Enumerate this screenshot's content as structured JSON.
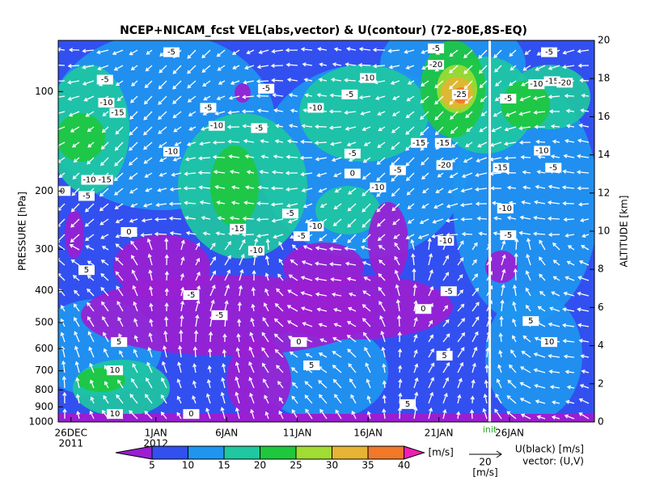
{
  "chart_data": {
    "type": "contour",
    "title": "NCEP+NICAM_fcst VEL(abs,vector) & U(contour)   (72-80E,8S-EQ)",
    "y_label": "PRESSURE [hPa]",
    "y2_label": "ALTITUDE [km]",
    "log_scale": true,
    "xlim": [
      -0.9,
      37
    ],
    "xticks": [
      {
        "value": 0,
        "label": "26DEC"
      },
      {
        "value": 6,
        "label": "1JAN"
      },
      {
        "value": 11,
        "label": "6JAN"
      },
      {
        "value": 16,
        "label": "11JAN"
      },
      {
        "value": 21,
        "label": "16JAN"
      },
      {
        "value": 26,
        "label": "21JAN"
      },
      {
        "value": 31,
        "label": "26JAN"
      }
    ],
    "xtick_years": [
      {
        "value": 0,
        "label": "2011"
      },
      {
        "value": 6,
        "label": "2012"
      }
    ],
    "ylim": [
      1000,
      70
    ],
    "yticks": [
      100,
      200,
      300,
      400,
      500,
      600,
      700,
      800,
      900,
      1000
    ],
    "y2lim": [
      0,
      20
    ],
    "y2ticks": [
      0,
      2,
      4,
      6,
      8,
      10,
      12,
      14,
      16,
      18,
      20
    ],
    "init": {
      "value": 29.6,
      "label": "init"
    },
    "contour_labels": [
      {
        "x": 7.1,
        "y": 76,
        "value": -5
      },
      {
        "x": 2.4,
        "y": 92,
        "value": -5
      },
      {
        "x": 2.5,
        "y": 108,
        "value": -10
      },
      {
        "x": 3.3,
        "y": 116,
        "value": -15
      },
      {
        "x": 9.7,
        "y": 112,
        "value": -5
      },
      {
        "x": 10.3,
        "y": 127,
        "value": -10
      },
      {
        "x": 13.3,
        "y": 129,
        "value": -5
      },
      {
        "x": 13.8,
        "y": 98,
        "value": -5
      },
      {
        "x": 17.3,
        "y": 112,
        "value": -10
      },
      {
        "x": 19.7,
        "y": 102,
        "value": -5
      },
      {
        "x": 21,
        "y": 91,
        "value": -10
      },
      {
        "x": 25.8,
        "y": 74,
        "value": -5
      },
      {
        "x": 25.8,
        "y": 83,
        "value": -20
      },
      {
        "x": 27.5,
        "y": 102,
        "value": -25
      },
      {
        "x": 30.9,
        "y": 105,
        "value": -5
      },
      {
        "x": 33.8,
        "y": 76,
        "value": -5
      },
      {
        "x": 32.9,
        "y": 95,
        "value": -10
      },
      {
        "x": 34.0,
        "y": 93,
        "value": -15
      },
      {
        "x": 34.9,
        "y": 94,
        "value": -20
      },
      {
        "x": 7.1,
        "y": 152,
        "value": -10
      },
      {
        "x": 24.6,
        "y": 143,
        "value": -15
      },
      {
        "x": 26.3,
        "y": 143,
        "value": -15
      },
      {
        "x": 26.4,
        "y": 167,
        "value": -20
      },
      {
        "x": 33.3,
        "y": 151,
        "value": -10
      },
      {
        "x": 34.1,
        "y": 170,
        "value": -5
      },
      {
        "x": 30.4,
        "y": 170,
        "value": -15
      },
      {
        "x": 19.9,
        "y": 154,
        "value": -5
      },
      {
        "x": 19.9,
        "y": 177,
        "value": 0
      },
      {
        "x": 23.1,
        "y": 173,
        "value": -5
      },
      {
        "x": 21.7,
        "y": 195,
        "value": -10
      },
      {
        "x": 1.3,
        "y": 185,
        "value": -10
      },
      {
        "x": 2.4,
        "y": 185,
        "value": -15
      },
      {
        "x": -0.6,
        "y": 200,
        "value": 0
      },
      {
        "x": 1.1,
        "y": 207,
        "value": -5
      },
      {
        "x": 30.7,
        "y": 226,
        "value": -10
      },
      {
        "x": 15.5,
        "y": 234,
        "value": -5
      },
      {
        "x": 17.3,
        "y": 256,
        "value": -10
      },
      {
        "x": 11.8,
        "y": 260,
        "value": -15
      },
      {
        "x": 16.3,
        "y": 274,
        "value": -5
      },
      {
        "x": 13.1,
        "y": 303,
        "value": -10
      },
      {
        "x": 26.5,
        "y": 283,
        "value": -10
      },
      {
        "x": 4.1,
        "y": 266,
        "value": 0
      },
      {
        "x": 30.9,
        "y": 272,
        "value": -5
      },
      {
        "x": 1.1,
        "y": 347,
        "value": 5
      },
      {
        "x": 8.5,
        "y": 413,
        "value": -5
      },
      {
        "x": 26.7,
        "y": 402,
        "value": -5
      },
      {
        "x": 24.9,
        "y": 455,
        "value": 0
      },
      {
        "x": 10.5,
        "y": 475,
        "value": -5
      },
      {
        "x": 32.5,
        "y": 495,
        "value": 5
      },
      {
        "x": 3.4,
        "y": 573,
        "value": 5
      },
      {
        "x": 16.1,
        "y": 573,
        "value": 0
      },
      {
        "x": 33.8,
        "y": 573,
        "value": 10
      },
      {
        "x": 26.4,
        "y": 630,
        "value": 5
      },
      {
        "x": 17,
        "y": 674,
        "value": 5
      },
      {
        "x": 3.1,
        "y": 698,
        "value": 10
      },
      {
        "x": 23.8,
        "y": 883,
        "value": 5
      },
      {
        "x": 3.1,
        "y": 946,
        "value": 10
      },
      {
        "x": 8.5,
        "y": 946,
        "value": 0
      }
    ],
    "colorbar": {
      "levels": [
        5,
        10,
        15,
        20,
        25,
        30,
        35,
        40
      ],
      "colors": [
        "#9b1ed2",
        "#3250f0",
        "#1e96f0",
        "#1ec8a0",
        "#1ec83c",
        "#a0dc32",
        "#e6b432",
        "#f07828",
        "#f01eb4"
      ],
      "units": "[m/s]"
    },
    "vector_key": {
      "value": 20,
      "units": "[m/s]"
    },
    "legend_lines": [
      "U(black) [m/s]",
      "vector: (U,V)"
    ]
  }
}
